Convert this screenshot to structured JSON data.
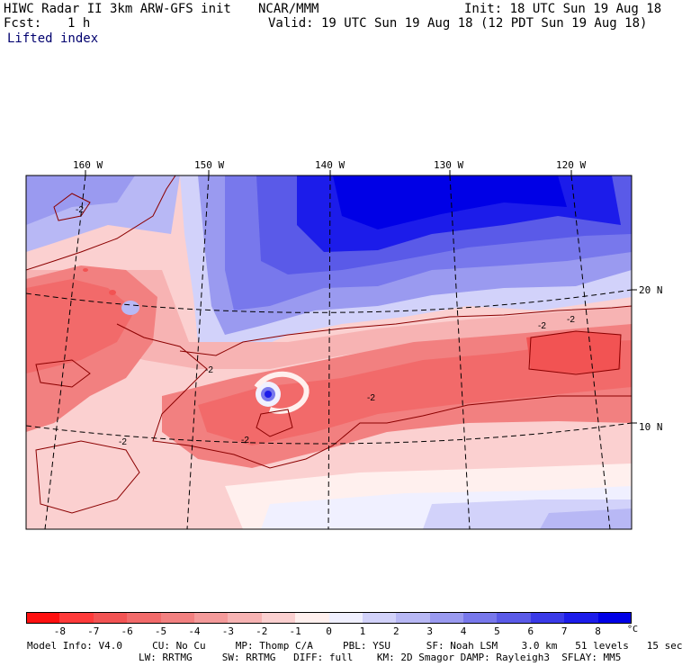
{
  "header": {
    "model": "HIWC Radar II 3km ARW-GFS init",
    "org": "NCAR/MMM",
    "init": "Init: 18 UTC Sun 19 Aug 18",
    "fcst_label": "Fcst:",
    "fcst_value": "1 h",
    "valid": "Valid: 19 UTC Sun 19 Aug 18 (12 PDT Sun 19 Aug 18)",
    "field": "Lifted index"
  },
  "map": {
    "lon_labels": [
      "160 W",
      "150 W",
      "140 W",
      "130 W",
      "120 W"
    ],
    "lat_labels": [
      "20 N",
      "10 N"
    ],
    "contour_label": "-2"
  },
  "colorbar": {
    "unit": "°C",
    "ticks": [
      "-8",
      "-7",
      "-6",
      "-5",
      "-4",
      "-3",
      "-2",
      "-1",
      "0",
      "1",
      "2",
      "3",
      "4",
      "5",
      "6",
      "7",
      "8"
    ],
    "colors": [
      "#ff1010",
      "#ff3a3a",
      "#f25353",
      "#f26a6a",
      "#f28080",
      "#f49a9a",
      "#f7b3b3",
      "#fbd0d0",
      "#fff0ee",
      "#f0f0ff",
      "#d2d2fa",
      "#b8b8f5",
      "#9a9af0",
      "#7878ec",
      "#5a5ae8",
      "#3a3ae8",
      "#1c1cea",
      "#0000e6"
    ]
  },
  "footer": {
    "line1": "Model Info: V4.0     CU: No Cu     MP: Thomp C/A     PBL: YSU      SF: Noah LSM    3.0 km   51 levels   15 sec",
    "line2": "LW: RRTMG     SW: RRTMG   DIFF: full    KM: 2D Smagor DAMP: Rayleigh3  SFLAY: MM5"
  }
}
